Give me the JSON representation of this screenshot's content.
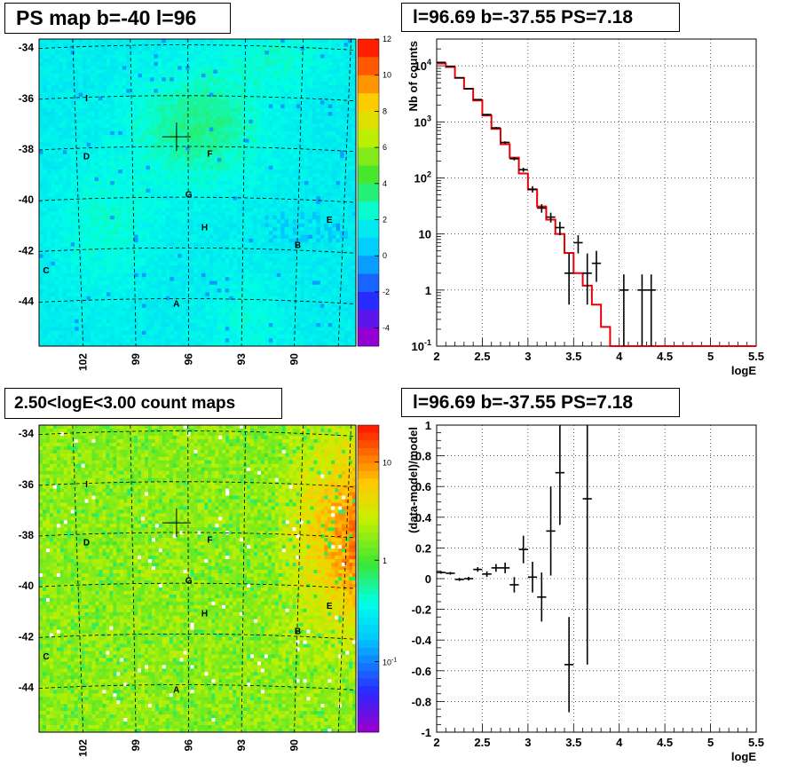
{
  "panels": {
    "ps_map": {
      "title": "PS map b=-40 l=96"
    },
    "spectrum": {
      "title": "l=96.69 b=-37.55 PS=7.18"
    },
    "count_map": {
      "title": "2.50<logE<3.00 count maps"
    },
    "residual": {
      "title": "l=96.69 b=-37.55 PS=7.18"
    }
  },
  "chart_data": [
    {
      "type": "heatmap",
      "title": "PS map b=-40 l=96",
      "y_ticks": [
        -34,
        -36,
        -38,
        -40,
        -42,
        -44
      ],
      "x_ticks": [
        102,
        99,
        96,
        93,
        90
      ],
      "xlim": [
        104.5,
        86.5
      ],
      "ylim": [
        -45.8,
        -33.7
      ],
      "colorbar": {
        "min": -5,
        "max": 12,
        "ticks": [
          -4,
          -2,
          0,
          2,
          4,
          6,
          8,
          10,
          12
        ]
      },
      "labels": [
        {
          "text": "I",
          "l": 101.8,
          "b": -36.0
        },
        {
          "text": "D",
          "l": 101.8,
          "b": -38.3
        },
        {
          "text": "F",
          "l": 94.8,
          "b": -38.2
        },
        {
          "text": "G",
          "l": 96.0,
          "b": -39.8
        },
        {
          "text": "H",
          "l": 95.1,
          "b": -41.1
        },
        {
          "text": "E",
          "l": 88.0,
          "b": -40.8
        },
        {
          "text": "B",
          "l": 89.8,
          "b": -41.8
        },
        {
          "text": "C",
          "l": 104.1,
          "b": -42.8
        },
        {
          "text": "A",
          "l": 96.7,
          "b": -44.1
        }
      ],
      "marker": {
        "l": 96.69,
        "b": -37.55
      }
    },
    {
      "type": "line",
      "title": "l=96.69 b=-37.55 PS=7.18",
      "xlabel": "logE",
      "ylabel": "Nb of counts",
      "xlim": [
        2,
        5.5
      ],
      "ylim": [
        0.1,
        30000
      ],
      "yscale": "log",
      "x_ticks": [
        "2",
        "2.5",
        "3",
        "3.5",
        "4",
        "4.5",
        "5",
        "5.5"
      ],
      "y_ticks": [
        "10^-1",
        "1",
        "10",
        "10^2",
        "10^3",
        "10^4"
      ],
      "model_bin_edges": [
        2.0,
        2.1,
        2.2,
        2.3,
        2.4,
        2.5,
        2.6,
        2.7,
        2.8,
        2.9,
        3.0,
        3.1,
        3.2,
        3.3,
        3.4,
        3.5,
        3.6,
        3.7,
        3.8,
        3.9,
        4.0,
        5.5
      ],
      "model_values": [
        11000,
        9500,
        6100,
        3900,
        2400,
        1300,
        750,
        400,
        230,
        120,
        62,
        31,
        18,
        10,
        4.6,
        2.0,
        1.2,
        0.55,
        0.22,
        0.1,
        0.1
      ],
      "series": [
        {
          "x": [
            2.05,
            2.15,
            2.25,
            2.35,
            2.45,
            2.55,
            2.65,
            2.75,
            2.85,
            2.95,
            3.05,
            3.15,
            3.25,
            3.35,
            3.45,
            3.55,
            3.65,
            3.75,
            4.05,
            4.25,
            4.35
          ],
          "y": [
            11500,
            9800,
            6100,
            3900,
            2500,
            1350,
            780,
            430,
            220,
            140,
            63,
            29,
            20,
            13,
            2.0,
            7.0,
            2.0,
            3.0,
            1.0,
            1.0,
            1.0
          ],
          "ylo": [
            11300,
            9600,
            6000,
            3840,
            2450,
            1310,
            750,
            410,
            205,
            128,
            55,
            24,
            16,
            9.5,
            0.55,
            4.5,
            0.55,
            1.4,
            0.1,
            0.1,
            0.1
          ],
          "yhi": [
            11700,
            10000,
            6200,
            3960,
            2550,
            1390,
            810,
            450,
            235,
            152,
            71,
            34,
            24,
            16.5,
            4.5,
            9.5,
            4.5,
            5.0,
            1.9,
            1.9,
            1.9
          ]
        }
      ]
    },
    {
      "type": "heatmap",
      "title": "2.50<logE<3.00 count maps",
      "y_ticks": [
        -34,
        -36,
        -38,
        -40,
        -42,
        -44
      ],
      "x_ticks": [
        102,
        99,
        96,
        93,
        90
      ],
      "xlim": [
        104.5,
        86.5
      ],
      "ylim": [
        -45.8,
        -33.7
      ],
      "colorbar": {
        "scale": "log",
        "ticks": [
          "10",
          "1",
          "10^-1"
        ]
      },
      "labels": [
        {
          "text": "I",
          "l": 101.8,
          "b": -36.0
        },
        {
          "text": "D",
          "l": 101.8,
          "b": -38.3
        },
        {
          "text": "F",
          "l": 94.8,
          "b": -38.2
        },
        {
          "text": "G",
          "l": 96.0,
          "b": -39.8
        },
        {
          "text": "H",
          "l": 95.1,
          "b": -41.1
        },
        {
          "text": "E",
          "l": 88.0,
          "b": -40.8
        },
        {
          "text": "B",
          "l": 89.8,
          "b": -41.8
        },
        {
          "text": "C",
          "l": 104.1,
          "b": -42.8
        },
        {
          "text": "A",
          "l": 96.7,
          "b": -44.1
        }
      ],
      "marker": {
        "l": 96.69,
        "b": -37.55
      }
    },
    {
      "type": "scatter",
      "title": "l=96.69 b=-37.55 PS=7.18",
      "xlabel": "logE",
      "ylabel": "(data-model)/model",
      "xlim": [
        2,
        5.5
      ],
      "ylim": [
        -1,
        1
      ],
      "x_ticks": [
        "2",
        "2.5",
        "3",
        "3.5",
        "4",
        "4.5",
        "5",
        "5.5"
      ],
      "y_ticks": [
        "-1",
        "-0.8",
        "-0.6",
        "-0.4",
        "-0.2",
        "0",
        "0.2",
        "0.4",
        "0.6",
        "0.8",
        "1"
      ],
      "series": [
        {
          "x": [
            2.05,
            2.15,
            2.25,
            2.35,
            2.45,
            2.55,
            2.65,
            2.75,
            2.85,
            2.95,
            3.05,
            3.15,
            3.25,
            3.35,
            3.45,
            3.65
          ],
          "y": [
            0.04,
            0.035,
            -0.005,
            0.0,
            0.06,
            0.03,
            0.07,
            0.07,
            -0.04,
            0.19,
            0.01,
            -0.12,
            0.31,
            0.69,
            -0.56,
            0.52
          ],
          "ylo": [
            0.032,
            0.026,
            -0.015,
            -0.012,
            0.045,
            0.012,
            0.045,
            0.035,
            -0.09,
            0.1,
            -0.09,
            -0.28,
            0.02,
            0.35,
            -0.87,
            -0.56
          ],
          "yhi": [
            0.048,
            0.044,
            0.005,
            0.012,
            0.075,
            0.048,
            0.095,
            0.105,
            0.01,
            0.28,
            0.11,
            0.04,
            0.6,
            1.0,
            -0.25,
            1.0
          ]
        }
      ]
    }
  ]
}
